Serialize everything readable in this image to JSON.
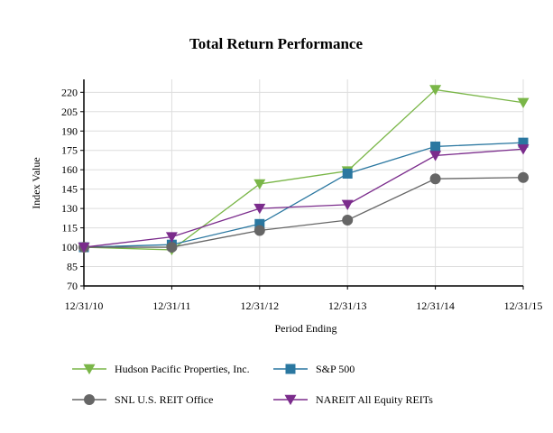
{
  "chart_data": {
    "type": "line",
    "title": "Total Return Performance",
    "xlabel": "Period Ending",
    "ylabel": "Index Value",
    "categories": [
      "12/31/10",
      "12/31/11",
      "12/31/12",
      "12/31/13",
      "12/31/14",
      "12/31/15"
    ],
    "ylim": [
      70,
      230
    ],
    "yticks": [
      70,
      85,
      100,
      115,
      130,
      145,
      160,
      175,
      190,
      205,
      220
    ],
    "grid": true,
    "legend_position": "bottom",
    "series": [
      {
        "name": "Hudson Pacific Properties, Inc.",
        "color": "#7ab648",
        "marker": "triangle-down",
        "values": [
          100,
          98,
          149,
          159,
          222,
          212
        ]
      },
      {
        "name": "S&P 500",
        "color": "#2a77a0",
        "marker": "square",
        "values": [
          100,
          102,
          118,
          157,
          178,
          181
        ]
      },
      {
        "name": "SNL U.S. REIT Office",
        "color": "#666666",
        "marker": "circle",
        "values": [
          100,
          100,
          113,
          121,
          153,
          154
        ]
      },
      {
        "name": "NAREIT All Equity REITs",
        "color": "#7b2c8c",
        "marker": "triangle-down",
        "values": [
          100,
          108,
          130,
          133,
          171,
          176
        ]
      }
    ]
  }
}
